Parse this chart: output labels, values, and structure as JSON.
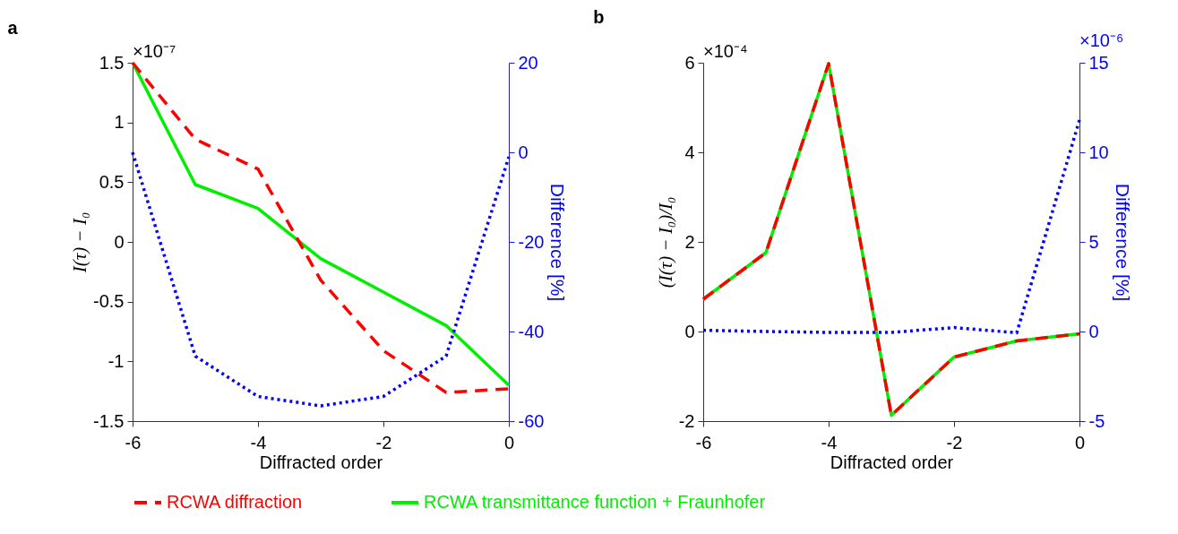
{
  "chart_data": [
    {
      "type": "line",
      "title": "a",
      "xlabel": "Diffracted order",
      "ylabel": "I(τ) − I₀",
      "y2label": "Difference [%]",
      "annotations": [
        "×10⁻⁷"
      ],
      "x": [
        -6,
        -5,
        -4,
        -3,
        -2,
        -1,
        0
      ],
      "xlim": [
        -6,
        0
      ],
      "xticks": [
        -6,
        -4,
        -2,
        0
      ],
      "ylim": [
        -1.5,
        1.5
      ],
      "yticks": [
        -1.5,
        -1,
        -0.5,
        0,
        0.5,
        1,
        1.5
      ],
      "y2lim": [
        -60,
        20
      ],
      "y2ticks": [
        -60,
        -40,
        -20,
        0,
        20
      ],
      "grid": false,
      "legend": "bottom",
      "marker": "none",
      "series": [
        {
          "name": "RCWA diffraction",
          "color": "#ff0000",
          "line_style": "dashed",
          "values": [
            1.5,
            0.86,
            0.61,
            -0.32,
            -0.91,
            -1.26,
            -1.23
          ]
        },
        {
          "name": "RCWA transmittance function + Fraunhofer",
          "color": "#00ee00",
          "line_style": "solid",
          "values": [
            1.5,
            0.48,
            0.28,
            -0.14,
            -0.42,
            -0.7,
            -1.2
          ]
        },
        {
          "color": "#0000ff",
          "line_style": "dotted",
          "axis": "y2",
          "values": [
            0,
            -45.5,
            -54.5,
            -56.6,
            -54.5,
            -45.5,
            -1
          ]
        }
      ]
    },
    {
      "type": "line",
      "title": "b",
      "xlabel": "Diffracted order",
      "ylabel": "(I(τ) − I₀)/I₀",
      "y2label": "Difference [%]",
      "annotations": [
        "×10⁻⁴",
        "×10⁻⁶"
      ],
      "x": [
        -6,
        -5,
        -4,
        -3,
        -2,
        -1,
        0
      ],
      "xlim": [
        -6,
        0
      ],
      "xticks": [
        -6,
        -4,
        -2,
        0
      ],
      "ylim": [
        -2,
        6
      ],
      "yticks": [
        -2,
        0,
        2,
        4,
        6
      ],
      "y2lim": [
        -5,
        15
      ],
      "y2ticks": [
        -5,
        0,
        5,
        10,
        15
      ],
      "grid": false,
      "legend": "bottom",
      "marker": "none",
      "series": [
        {
          "name": "RCWA diffraction",
          "color": "#ff0000",
          "line_style": "dashed",
          "values": [
            0.72,
            1.76,
            5.98,
            -1.87,
            -0.57,
            -0.21,
            -0.05
          ]
        },
        {
          "name": "RCWA transmittance function + Fraunhofer",
          "color": "#00ee00",
          "line_style": "solid",
          "values": [
            0.72,
            1.76,
            5.98,
            -1.87,
            -0.57,
            -0.21,
            -0.05
          ]
        },
        {
          "color": "#0000ff",
          "line_style": "dotted",
          "axis": "y2",
          "values": [
            0.07,
            0,
            -0.05,
            -0.05,
            0.22,
            -0.07,
            11.8
          ]
        }
      ]
    }
  ]
}
